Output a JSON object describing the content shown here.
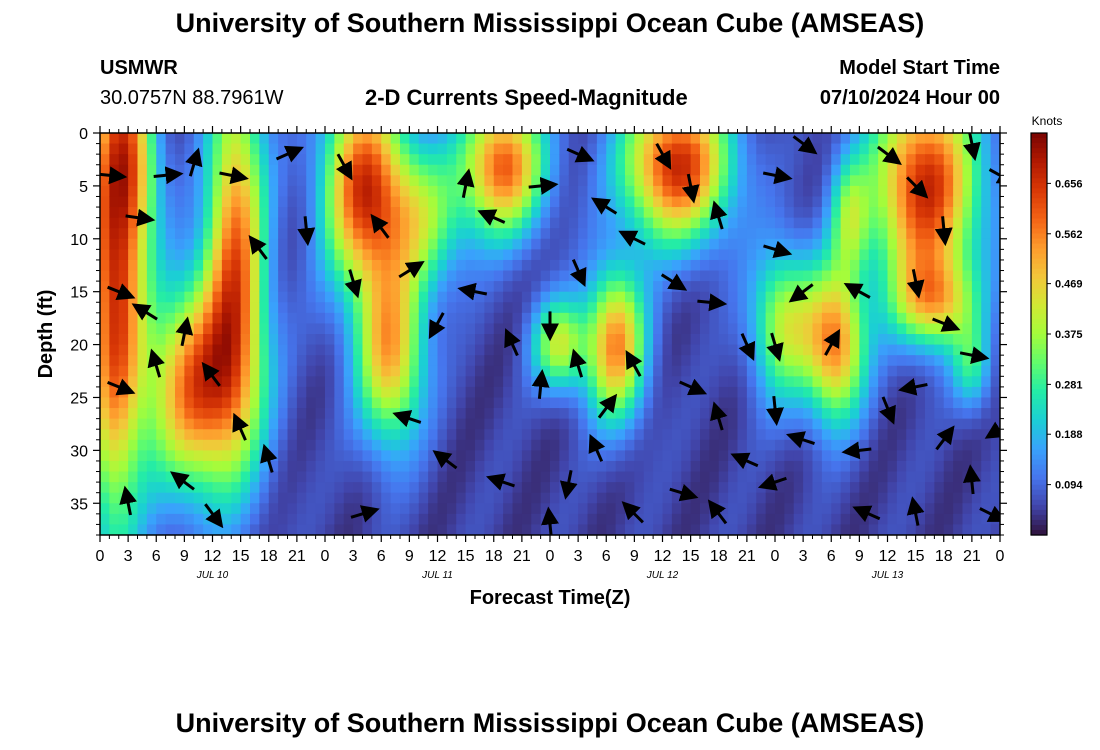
{
  "header": {
    "title": "University of Southern Mississippi Ocean Cube (AMSEAS)",
    "station": "USMWR",
    "coords": "30.0757N  88.7961W",
    "subtitle": "2-D Currents Speed-Magnitude",
    "model_label": "Model Start Time",
    "model_time": "07/10/2024 Hour 00"
  },
  "footer": {
    "title": "University of Southern Mississippi Ocean Cube (AMSEAS)"
  },
  "chart_data": {
    "type": "heatmap",
    "title": "2-D Currents Speed-Magnitude",
    "xlabel": "Forecast Time(Z)",
    "ylabel": "Depth (ft)",
    "xlim": [
      0,
      96
    ],
    "ylim": [
      0,
      38
    ],
    "x_ticks": [
      0,
      3,
      6,
      9,
      12,
      15,
      18,
      21,
      24,
      27,
      30,
      33,
      36,
      39,
      42,
      45,
      48,
      51,
      54,
      57,
      60,
      63,
      66,
      69,
      72,
      75,
      78,
      81,
      84,
      87,
      90,
      93,
      96
    ],
    "x_tick_labels": [
      "0",
      "3",
      "6",
      "9",
      "12",
      "15",
      "18",
      "21",
      "0",
      "3",
      "6",
      "9",
      "12",
      "15",
      "18",
      "21",
      "0",
      "3",
      "6",
      "9",
      "12",
      "15",
      "18",
      "21",
      "0",
      "3",
      "6",
      "9",
      "12",
      "15",
      "18",
      "21",
      "0"
    ],
    "y_ticks": [
      0,
      5,
      10,
      15,
      20,
      25,
      30,
      35
    ],
    "y_tick_labels": [
      "0",
      "5",
      "10",
      "15",
      "20",
      "25",
      "30",
      "35"
    ],
    "date_labels": [
      {
        "hour": 12,
        "label": "JUL 10"
      },
      {
        "hour": 36,
        "label": "JUL 11"
      },
      {
        "hour": 60,
        "label": "JUL 12"
      },
      {
        "hour": 84,
        "label": "JUL 13"
      }
    ],
    "colorbar": {
      "unit": "Knots",
      "min": 0.0,
      "max": 0.75,
      "ticks": [
        0.094,
        0.188,
        0.281,
        0.375,
        0.469,
        0.562,
        0.656
      ],
      "tick_labels": [
        "0.094",
        "0.188",
        "0.281",
        "0.375",
        "0.469",
        "0.562",
        "0.656"
      ],
      "colors": [
        "#30123b",
        "#4145ab",
        "#4675ed",
        "#39a2fc",
        "#1bcfd4",
        "#24eca6",
        "#61fc6c",
        "#a4fc3b",
        "#d1e834",
        "#f3c63a",
        "#fe9b2d",
        "#f36315",
        "#d93806",
        "#b11901",
        "#7a0402"
      ]
    },
    "speed_blobs": [
      {
        "t": 1.5,
        "d": 12,
        "st": 2.2,
        "sd": 18,
        "v": 0.6
      },
      {
        "t": 4,
        "d": 3,
        "st": 1.8,
        "sd": 6,
        "v": 0.25
      },
      {
        "t": 14.5,
        "d": 10,
        "st": 2.2,
        "sd": 12,
        "v": 0.5
      },
      {
        "t": 10.5,
        "d": 24,
        "st": 4,
        "sd": 7,
        "v": 0.55
      },
      {
        "t": 28,
        "d": 5,
        "st": 3,
        "sd": 7,
        "v": 0.55
      },
      {
        "t": 34,
        "d": 8,
        "st": 3.5,
        "sd": 5,
        "v": 0.3
      },
      {
        "t": 31,
        "d": 21,
        "st": 2.5,
        "sd": 6,
        "v": 0.45
      },
      {
        "t": 43,
        "d": 3,
        "st": 3,
        "sd": 4.5,
        "v": 0.55
      },
      {
        "t": 49,
        "d": 20,
        "st": 2,
        "sd": 3,
        "v": 0.35
      },
      {
        "t": 55,
        "d": 20,
        "st": 2.2,
        "sd": 5,
        "v": 0.5
      },
      {
        "t": 61.5,
        "d": 3,
        "st": 4,
        "sd": 5,
        "v": 0.62
      },
      {
        "t": 73,
        "d": 18,
        "st": 2.5,
        "sd": 5,
        "v": 0.35
      },
      {
        "t": 78.5,
        "d": 20,
        "st": 2.2,
        "sd": 5,
        "v": 0.5
      },
      {
        "t": 80,
        "d": 8,
        "st": 1.5,
        "sd": 4,
        "v": 0.25
      },
      {
        "t": 88,
        "d": 5,
        "st": 4,
        "sd": 7,
        "v": 0.62
      },
      {
        "t": 89,
        "d": 16,
        "st": 3,
        "sd": 3,
        "v": 0.35
      },
      {
        "t": 93,
        "d": 22,
        "st": 1.5,
        "sd": 3,
        "v": 0.2
      }
    ],
    "vectors": [
      {
        "t": 1,
        "d": 4,
        "dx": 1,
        "dy": 0.1
      },
      {
        "t": 4,
        "d": 8,
        "dx": 1,
        "dy": 0.15
      },
      {
        "t": 7,
        "d": 4,
        "dx": 1,
        "dy": -0.1
      },
      {
        "t": 2,
        "d": 15,
        "dx": 1,
        "dy": 0.4
      },
      {
        "t": 5,
        "d": 17,
        "dx": -0.8,
        "dy": -0.5
      },
      {
        "t": 2,
        "d": 24,
        "dx": 1,
        "dy": 0.4
      },
      {
        "t": 6,
        "d": 22,
        "dx": -0.3,
        "dy": -1
      },
      {
        "t": 9,
        "d": 19,
        "dx": 0.2,
        "dy": -1
      },
      {
        "t": 12,
        "d": 23,
        "dx": -0.6,
        "dy": -0.8
      },
      {
        "t": 15,
        "d": 28,
        "dx": -0.4,
        "dy": -0.9
      },
      {
        "t": 18,
        "d": 31,
        "dx": -0.3,
        "dy": -1
      },
      {
        "t": 9,
        "d": 33,
        "dx": -0.8,
        "dy": -0.6
      },
      {
        "t": 12,
        "d": 36,
        "dx": 0.6,
        "dy": 0.8
      },
      {
        "t": 3,
        "d": 35,
        "dx": -0.2,
        "dy": -1
      },
      {
        "t": 10,
        "d": 3,
        "dx": 0.3,
        "dy": -1
      },
      {
        "t": 14,
        "d": 4,
        "dx": 1,
        "dy": 0.2
      },
      {
        "t": 17,
        "d": 11,
        "dx": -0.6,
        "dy": -0.8
      },
      {
        "t": 20,
        "d": 2,
        "dx": 0.9,
        "dy": -0.4
      },
      {
        "t": 22,
        "d": 9,
        "dx": 0.1,
        "dy": 1
      },
      {
        "t": 26,
        "d": 3,
        "dx": 0.5,
        "dy": 0.9
      },
      {
        "t": 27,
        "d": 14,
        "dx": 0.3,
        "dy": 1
      },
      {
        "t": 30,
        "d": 9,
        "dx": -0.6,
        "dy": -0.8
      },
      {
        "t": 33,
        "d": 13,
        "dx": 0.8,
        "dy": -0.5
      },
      {
        "t": 36,
        "d": 18,
        "dx": -0.5,
        "dy": 0.9
      },
      {
        "t": 39,
        "d": 5,
        "dx": 0.2,
        "dy": -1
      },
      {
        "t": 42,
        "d": 8,
        "dx": -0.9,
        "dy": -0.4
      },
      {
        "t": 40,
        "d": 15,
        "dx": -1,
        "dy": -0.2
      },
      {
        "t": 44,
        "d": 20,
        "dx": -0.4,
        "dy": -0.9
      },
      {
        "t": 47,
        "d": 24,
        "dx": 0.1,
        "dy": -1
      },
      {
        "t": 33,
        "d": 27,
        "dx": -0.9,
        "dy": -0.3
      },
      {
        "t": 37,
        "d": 31,
        "dx": -0.8,
        "dy": -0.6
      },
      {
        "t": 43,
        "d": 33,
        "dx": -0.9,
        "dy": -0.3
      },
      {
        "t": 28,
        "d": 36,
        "dx": 1,
        "dy": -0.3
      },
      {
        "t": 47,
        "d": 5,
        "dx": 1,
        "dy": -0.1
      },
      {
        "t": 51,
        "d": 2,
        "dx": 0.9,
        "dy": 0.4
      },
      {
        "t": 54,
        "d": 7,
        "dx": -0.8,
        "dy": -0.5
      },
      {
        "t": 57,
        "d": 10,
        "dx": -0.8,
        "dy": -0.4
      },
      {
        "t": 51,
        "d": 13,
        "dx": 0.4,
        "dy": 0.9
      },
      {
        "t": 48,
        "d": 18,
        "dx": 0,
        "dy": 1
      },
      {
        "t": 51,
        "d": 22,
        "dx": -0.3,
        "dy": -1
      },
      {
        "t": 54,
        "d": 26,
        "dx": 0.6,
        "dy": -0.8
      },
      {
        "t": 57,
        "d": 22,
        "dx": -0.5,
        "dy": -0.9
      },
      {
        "t": 50,
        "d": 33,
        "dx": -0.2,
        "dy": 1
      },
      {
        "t": 53,
        "d": 30,
        "dx": -0.4,
        "dy": -0.9
      },
      {
        "t": 57,
        "d": 36,
        "dx": -0.7,
        "dy": -0.7
      },
      {
        "t": 48,
        "d": 37,
        "dx": -0.1,
        "dy": -1
      },
      {
        "t": 60,
        "d": 2,
        "dx": 0.5,
        "dy": 0.9
      },
      {
        "t": 63,
        "d": 5,
        "dx": 0.2,
        "dy": 1
      },
      {
        "t": 66,
        "d": 8,
        "dx": -0.3,
        "dy": -1
      },
      {
        "t": 61,
        "d": 14,
        "dx": 0.8,
        "dy": 0.5
      },
      {
        "t": 65,
        "d": 16,
        "dx": 1,
        "dy": 0.1
      },
      {
        "t": 69,
        "d": 20,
        "dx": 0.4,
        "dy": 0.9
      },
      {
        "t": 63,
        "d": 24,
        "dx": 0.9,
        "dy": 0.4
      },
      {
        "t": 66,
        "d": 27,
        "dx": -0.3,
        "dy": -1
      },
      {
        "t": 69,
        "d": 31,
        "dx": -0.9,
        "dy": -0.4
      },
      {
        "t": 62,
        "d": 34,
        "dx": 1,
        "dy": 0.3
      },
      {
        "t": 66,
        "d": 36,
        "dx": -0.6,
        "dy": -0.8
      },
      {
        "t": 72,
        "d": 4,
        "dx": 1,
        "dy": 0.2
      },
      {
        "t": 75,
        "d": 1,
        "dx": 0.8,
        "dy": 0.6
      },
      {
        "t": 72,
        "d": 11,
        "dx": 1,
        "dy": 0.3
      },
      {
        "t": 75,
        "d": 15,
        "dx": -0.8,
        "dy": 0.6
      },
      {
        "t": 72,
        "d": 20,
        "dx": 0.3,
        "dy": 1
      },
      {
        "t": 72,
        "d": 26,
        "dx": 0.1,
        "dy": 1
      },
      {
        "t": 72,
        "d": 33,
        "dx": -0.9,
        "dy": 0.3
      },
      {
        "t": 75,
        "d": 29,
        "dx": -0.9,
        "dy": -0.3
      },
      {
        "t": 78,
        "d": 20,
        "dx": 0.5,
        "dy": -0.9
      },
      {
        "t": 81,
        "d": 15,
        "dx": -0.9,
        "dy": -0.5
      },
      {
        "t": 84,
        "d": 26,
        "dx": 0.4,
        "dy": 1
      },
      {
        "t": 81,
        "d": 30,
        "dx": -0.9,
        "dy": 0.1
      },
      {
        "t": 84,
        "d": 2,
        "dx": 0.8,
        "dy": 0.6
      },
      {
        "t": 87,
        "d": 5,
        "dx": 0.7,
        "dy": 0.7
      },
      {
        "t": 90,
        "d": 9,
        "dx": 0.1,
        "dy": 1
      },
      {
        "t": 93,
        "d": 1,
        "dx": 0.2,
        "dy": 1
      },
      {
        "t": 96,
        "d": 4,
        "dx": 0.9,
        "dy": 0.5
      },
      {
        "t": 87,
        "d": 14,
        "dx": 0.2,
        "dy": 1
      },
      {
        "t": 90,
        "d": 18,
        "dx": 1,
        "dy": 0.4
      },
      {
        "t": 93,
        "d": 21,
        "dx": 1,
        "dy": 0.2
      },
      {
        "t": 87,
        "d": 24,
        "dx": -1,
        "dy": 0.2
      },
      {
        "t": 90,
        "d": 29,
        "dx": 0.6,
        "dy": -0.8
      },
      {
        "t": 93,
        "d": 33,
        "dx": -0.1,
        "dy": -1
      },
      {
        "t": 96,
        "d": 28,
        "dx": -0.8,
        "dy": 0.5
      },
      {
        "t": 87,
        "d": 36,
        "dx": -0.2,
        "dy": -1
      },
      {
        "t": 95,
        "d": 36,
        "dx": 1,
        "dy": 0.5
      },
      {
        "t": 82,
        "d": 36,
        "dx": -0.9,
        "dy": -0.4
      }
    ]
  }
}
